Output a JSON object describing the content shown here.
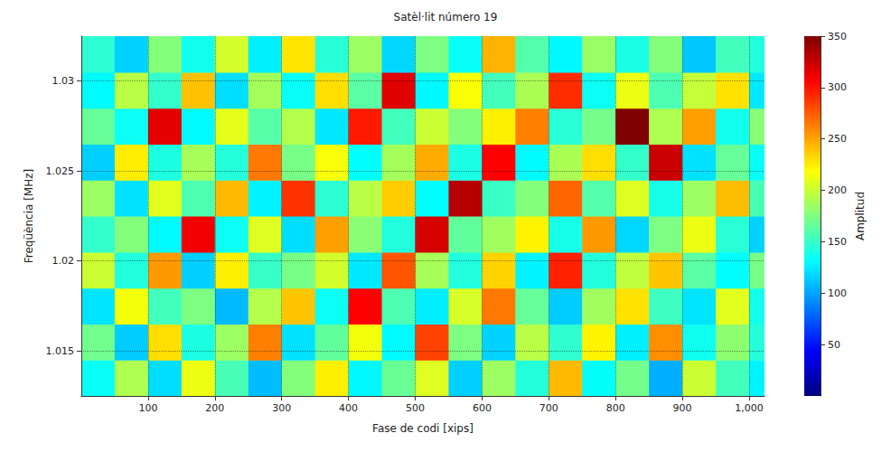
{
  "chart_data": {
    "type": "heatmap",
    "title": "Satèl·lit número 19",
    "x_label": "Fase de codi [xips]",
    "y_label": "Freqüència [MHz]",
    "z_label": "Amplitud",
    "x": [
      25,
      75,
      125,
      175,
      225,
      275,
      325,
      375,
      425,
      475,
      525,
      575,
      625,
      675,
      725,
      775,
      825,
      875,
      925,
      975,
      1025
    ],
    "y": [
      1.0135,
      1.0155,
      1.0175,
      1.0195,
      1.0215,
      1.0235,
      1.0255,
      1.0275,
      1.0295,
      1.0315
    ],
    "values": [
      [
        142,
        188,
        131,
        205,
        160,
        122,
        176,
        214,
        138,
        169,
        201,
        127,
        183,
        150,
        229,
        141,
        172,
        118,
        196,
        158,
        137
      ],
      [
        171,
        126,
        219,
        148,
        183,
        245,
        132,
        167,
        207,
        139,
        262,
        174,
        128,
        191,
        153,
        213,
        136,
        241,
        144,
        179,
        150
      ],
      [
        133,
        207,
        158,
        174,
        121,
        189,
        226,
        143,
        280,
        161,
        135,
        199,
        247,
        168,
        126,
        184,
        218,
        157,
        133,
        202,
        145
      ],
      [
        196,
        149,
        238,
        127,
        214,
        155,
        173,
        198,
        134,
        257,
        186,
        149,
        222,
        137,
        271,
        149,
        193,
        226,
        165,
        140,
        173
      ],
      [
        154,
        176,
        139,
        288,
        143,
        201,
        131,
        236,
        178,
        149,
        303,
        167,
        184,
        213,
        146,
        238,
        129,
        174,
        205,
        151,
        128
      ],
      [
        183,
        132,
        202,
        161,
        229,
        137,
        266,
        152,
        191,
        224,
        140,
        320,
        156,
        176,
        252,
        163,
        201,
        146,
        183,
        228,
        160
      ],
      [
        127,
        215,
        148,
        186,
        150,
        247,
        173,
        208,
        140,
        185,
        233,
        147,
        281,
        139,
        187,
        219,
        154,
        309,
        132,
        168,
        142
      ],
      [
        168,
        143,
        294,
        139,
        203,
        164,
        189,
        134,
        273,
        158,
        196,
        176,
        214,
        245,
        151,
        172,
        350,
        188,
        236,
        145,
        177
      ],
      [
        139,
        191,
        154,
        227,
        131,
        185,
        142,
        219,
        165,
        297,
        138,
        209,
        158,
        187,
        268,
        143,
        205,
        161,
        194,
        218,
        134
      ],
      [
        152,
        128,
        176,
        145,
        198,
        136,
        217,
        151,
        183,
        129,
        174,
        142,
        231,
        163,
        138,
        182,
        147,
        176,
        125,
        158,
        149
      ]
    ],
    "xlim": [
      0,
      1023
    ],
    "xticks": [
      100,
      200,
      300,
      400,
      500,
      600,
      700,
      800,
      900,
      1000
    ],
    "ylim": [
      1.0125,
      1.0325
    ],
    "yticks": [
      1.015,
      1.02,
      1.025,
      1.03
    ],
    "zlim": [
      0,
      350
    ],
    "zticks": [
      50,
      100,
      150,
      200,
      250,
      300,
      350
    ],
    "grid": true
  }
}
